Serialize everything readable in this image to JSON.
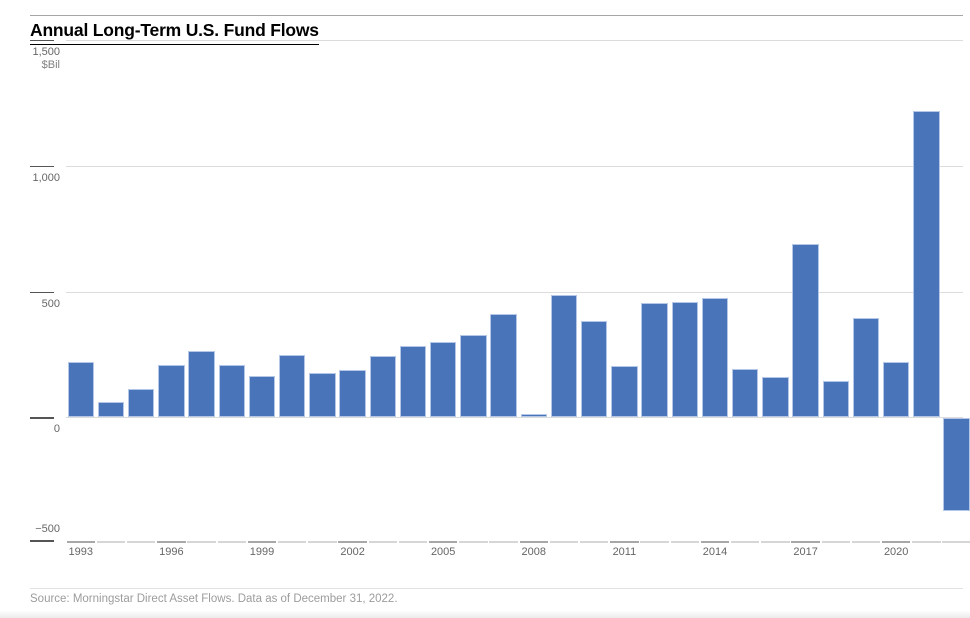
{
  "header": {
    "title": "Annual Long-Term U.S. Fund Flows"
  },
  "chart_data": {
    "type": "bar",
    "title": "Annual Long-Term U.S. Fund Flows",
    "ylabel": "$Bil",
    "xlabel": "",
    "x": [
      1993,
      1994,
      1995,
      1996,
      1997,
      1998,
      1999,
      2000,
      2001,
      2002,
      2003,
      2004,
      2005,
      2006,
      2007,
      2008,
      2009,
      2010,
      2011,
      2012,
      2013,
      2014,
      2015,
      2016,
      2017,
      2018,
      2019,
      2020,
      2021,
      2022
    ],
    "values": [
      220,
      60,
      112,
      208,
      264,
      208,
      166,
      246,
      176,
      188,
      242,
      282,
      298,
      326,
      412,
      12,
      488,
      382,
      205,
      456,
      460,
      476,
      191,
      161,
      690,
      146,
      394,
      221,
      1218,
      -368
    ],
    "series": [
      {
        "name": "Annual long-term U.S. fund flows ($Bil)",
        "values": [
          220,
          60,
          112,
          208,
          264,
          208,
          166,
          246,
          176,
          188,
          242,
          282,
          298,
          326,
          412,
          12,
          488,
          382,
          205,
          456,
          460,
          476,
          191,
          161,
          690,
          146,
          394,
          221,
          1218,
          -368
        ]
      }
    ],
    "ylim": [
      -500,
      1500
    ],
    "yticks": [
      {
        "value": 1500,
        "label": "1,500",
        "label_pos": "below"
      },
      {
        "value": 1000,
        "label": "1,000",
        "label_pos": "below"
      },
      {
        "value": 500,
        "label": "500",
        "label_pos": "below"
      },
      {
        "value": 0,
        "label": "0",
        "label_pos": "below"
      },
      {
        "value": -500,
        "label": "−500",
        "label_pos": "above"
      }
    ],
    "xtick_labels": [
      "1993",
      "1996",
      "1999",
      "2002",
      "2005",
      "2008",
      "2011",
      "2014",
      "2017",
      "2020"
    ],
    "xtick_interval": 3,
    "grid": "horizontal-light",
    "legend": "none",
    "bar_color": "#4a74ba",
    "bar_edge_color": "#b4c7e7",
    "unit_label": "$Bil"
  },
  "footer": {
    "source": "Source: Morningstar Direct Asset Flows. Data as of December 31, 2022."
  }
}
